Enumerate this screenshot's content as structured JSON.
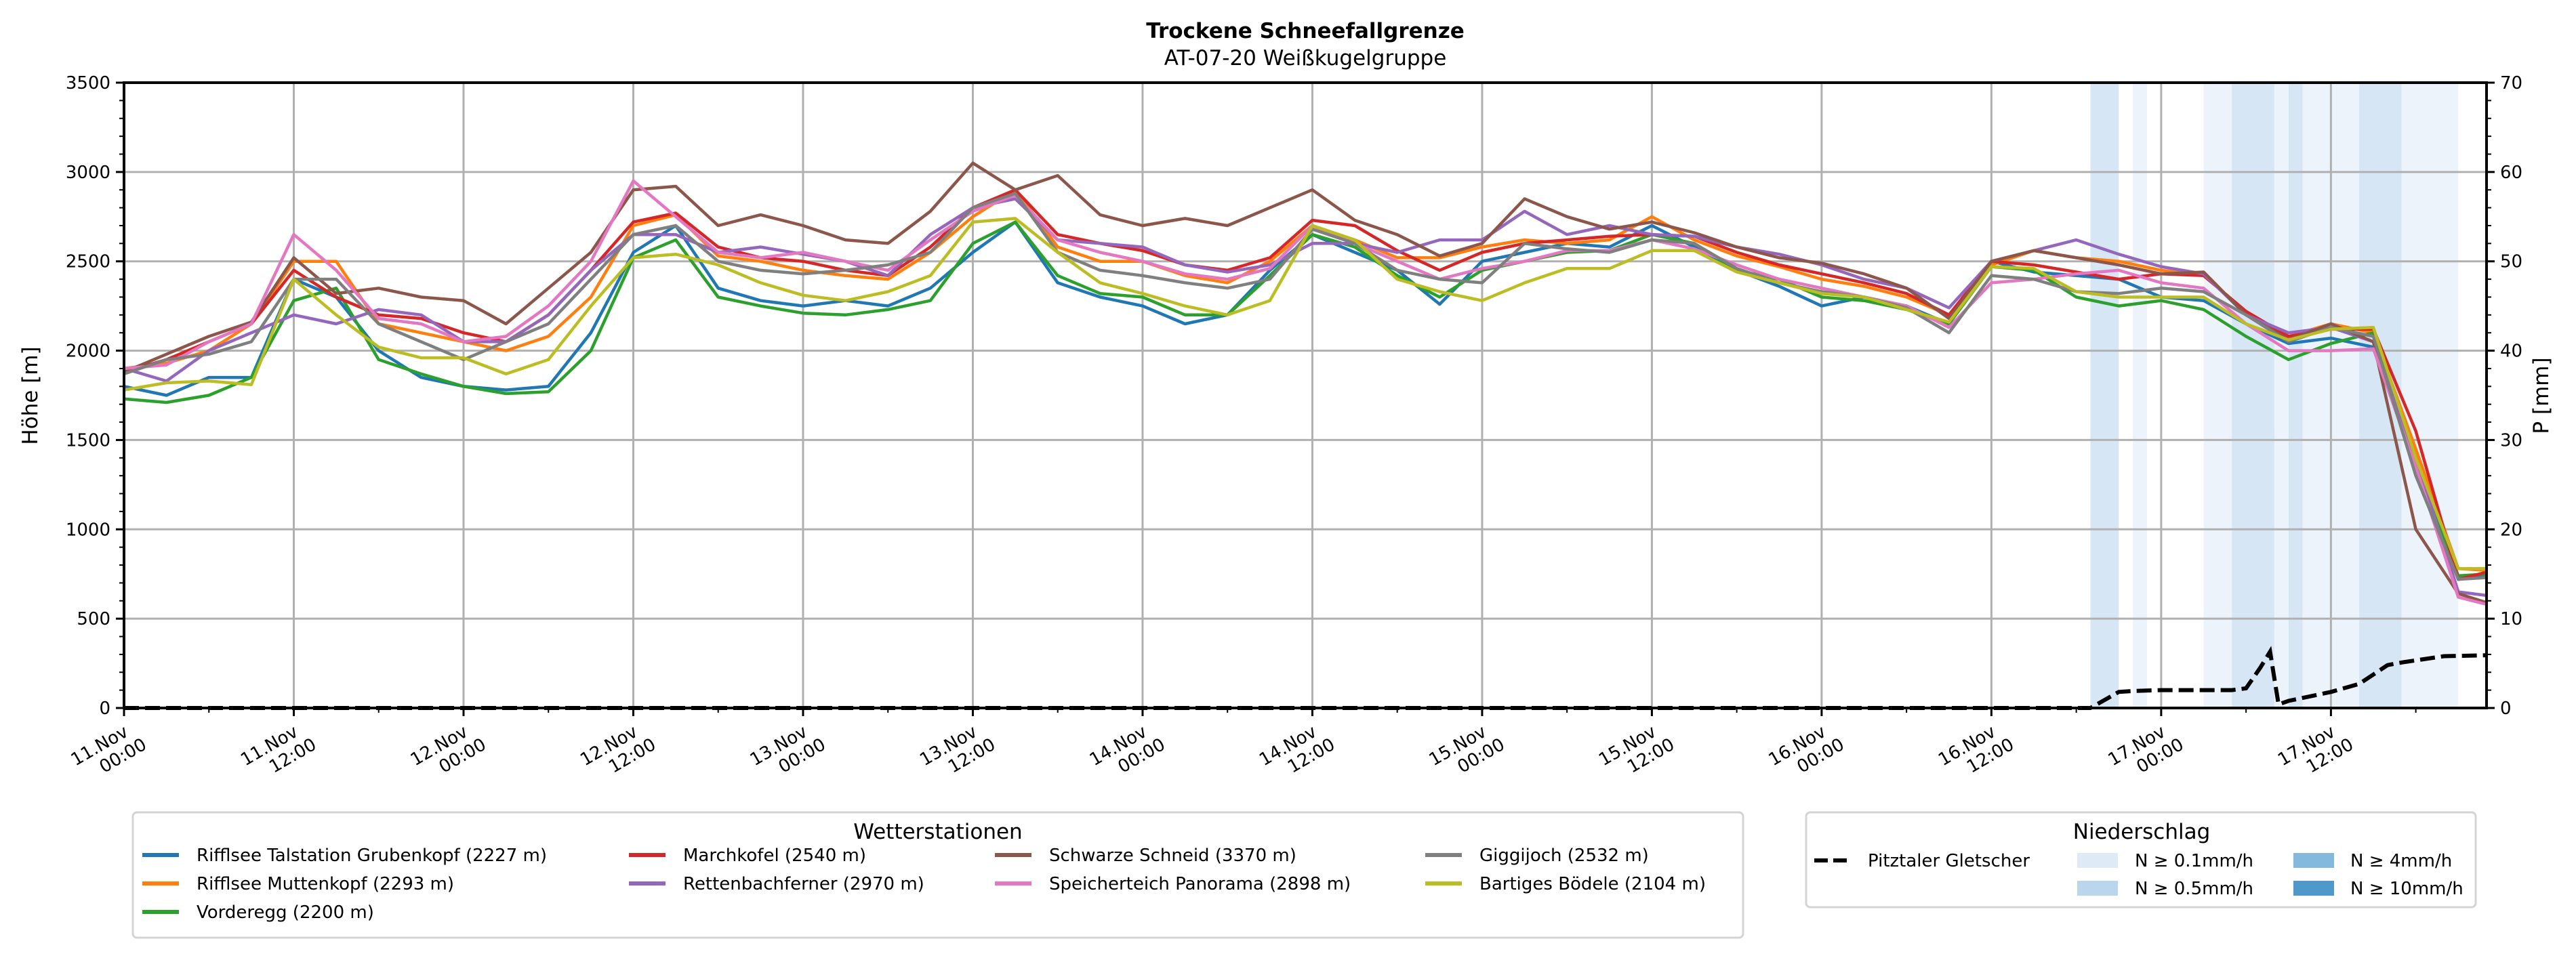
{
  "chart_data": {
    "type": "line",
    "title": "Trockene Schneefallgrenze",
    "subtitle": "AT-07-20 Weißkugelgruppe",
    "ylabel": "Höhe [m]",
    "y2label": "P [mm]",
    "ylim": [
      0,
      3500
    ],
    "y2lim": [
      0,
      70
    ],
    "yticks": [
      "0",
      "500",
      "1000",
      "1500",
      "2000",
      "2500",
      "3000",
      "3500"
    ],
    "y2ticks": [
      "0",
      "10",
      "20",
      "30",
      "40",
      "50",
      "60",
      "70"
    ],
    "x_unit": "hours since 11.Nov 00:00",
    "xlim": [
      0,
      167
    ],
    "xticks": [
      {
        "hour": 0,
        "line1": "11.Nov",
        "line2": "00:00"
      },
      {
        "hour": 12,
        "line1": "11.Nov",
        "line2": "12:00"
      },
      {
        "hour": 24,
        "line1": "12.Nov",
        "line2": "00:00"
      },
      {
        "hour": 36,
        "line1": "12.Nov",
        "line2": "12:00"
      },
      {
        "hour": 48,
        "line1": "13.Nov",
        "line2": "00:00"
      },
      {
        "hour": 60,
        "line1": "13.Nov",
        "line2": "12:00"
      },
      {
        "hour": 72,
        "line1": "14.Nov",
        "line2": "00:00"
      },
      {
        "hour": 84,
        "line1": "14.Nov",
        "line2": "12:00"
      },
      {
        "hour": 96,
        "line1": "15.Nov",
        "line2": "00:00"
      },
      {
        "hour": 108,
        "line1": "15.Nov",
        "line2": "12:00"
      },
      {
        "hour": 120,
        "line1": "16.Nov",
        "line2": "00:00"
      },
      {
        "hour": 132,
        "line1": "16.Nov",
        "line2": "12:00"
      },
      {
        "hour": 144,
        "line1": "17.Nov",
        "line2": "00:00"
      },
      {
        "hour": 156,
        "line1": "17.Nov",
        "line2": "12:00"
      }
    ],
    "x": [
      0,
      3,
      6,
      9,
      12,
      15,
      18,
      21,
      24,
      27,
      30,
      33,
      36,
      39,
      42,
      45,
      48,
      51,
      54,
      57,
      60,
      63,
      66,
      69,
      72,
      75,
      78,
      81,
      84,
      87,
      90,
      93,
      96,
      99,
      102,
      105,
      108,
      111,
      114,
      117,
      120,
      123,
      126,
      129,
      132,
      135,
      138,
      141,
      144,
      147,
      150,
      153,
      156,
      159,
      162,
      165,
      167
    ],
    "series": [
      {
        "name": "Rifflsee Talstation Grubenkopf (2227 m)",
        "color": "#1f77b4",
        "values": [
          1800,
          1750,
          1850,
          1850,
          2400,
          2300,
          2000,
          1850,
          1800,
          1780,
          1800,
          2100,
          2550,
          2700,
          2350,
          2280,
          2250,
          2280,
          2250,
          2350,
          2550,
          2720,
          2380,
          2300,
          2250,
          2150,
          2200,
          2450,
          2650,
          2550,
          2450,
          2260,
          2500,
          2550,
          2600,
          2580,
          2700,
          2580,
          2450,
          2360,
          2250,
          2300,
          2250,
          2150,
          2500,
          2440,
          2420,
          2400,
          2300,
          2280,
          2150,
          2040,
          2070,
          2020,
          1400,
          720,
          740
        ]
      },
      {
        "name": "Rifflsee Muttenkopf (2293 m)",
        "color": "#ff7f0e",
        "values": [
          1900,
          1930,
          2000,
          2150,
          2500,
          2500,
          2150,
          2100,
          2050,
          2000,
          2080,
          2300,
          2700,
          2760,
          2530,
          2500,
          2450,
          2420,
          2400,
          2550,
          2750,
          2900,
          2580,
          2500,
          2500,
          2420,
          2380,
          2500,
          2700,
          2620,
          2520,
          2520,
          2580,
          2620,
          2600,
          2620,
          2750,
          2620,
          2530,
          2470,
          2400,
          2360,
          2300,
          2200,
          2480,
          2560,
          2520,
          2500,
          2450,
          2420,
          2220,
          2080,
          2150,
          2100,
          1450,
          780,
          770
        ]
      },
      {
        "name": "Vorderegg (2200 m)",
        "color": "#2ca02c",
        "values": [
          1730,
          1710,
          1750,
          1850,
          2280,
          2350,
          1950,
          1870,
          1800,
          1760,
          1770,
          2000,
          2520,
          2620,
          2300,
          2250,
          2210,
          2200,
          2230,
          2280,
          2600,
          2720,
          2420,
          2320,
          2300,
          2200,
          2200,
          2420,
          2650,
          2580,
          2420,
          2300,
          2450,
          2500,
          2550,
          2560,
          2650,
          2600,
          2450,
          2400,
          2300,
          2280,
          2230,
          2150,
          2470,
          2450,
          2300,
          2250,
          2280,
          2230,
          2080,
          1950,
          2040,
          2100,
          1400,
          740,
          750
        ]
      },
      {
        "name": "Marchkofel (2540 m)",
        "color": "#d62728",
        "values": [
          1880,
          1950,
          2050,
          2150,
          2450,
          2300,
          2200,
          2180,
          2100,
          2050,
          2200,
          2450,
          2720,
          2770,
          2580,
          2520,
          2500,
          2450,
          2420,
          2580,
          2800,
          2900,
          2650,
          2600,
          2560,
          2480,
          2450,
          2520,
          2730,
          2700,
          2560,
          2450,
          2550,
          2600,
          2620,
          2640,
          2650,
          2640,
          2550,
          2480,
          2430,
          2380,
          2320,
          2200,
          2500,
          2480,
          2440,
          2400,
          2430,
          2420,
          2220,
          2080,
          2120,
          2120,
          1550,
          720,
          760
        ]
      },
      {
        "name": "Rettenbachferner (2970 m)",
        "color": "#9467bd",
        "values": [
          1900,
          1830,
          2000,
          2100,
          2200,
          2150,
          2230,
          2200,
          2050,
          2050,
          2200,
          2450,
          2650,
          2650,
          2550,
          2580,
          2540,
          2500,
          2420,
          2650,
          2800,
          2850,
          2620,
          2600,
          2580,
          2480,
          2440,
          2480,
          2600,
          2600,
          2550,
          2620,
          2620,
          2780,
          2650,
          2700,
          2650,
          2640,
          2580,
          2540,
          2480,
          2400,
          2350,
          2240,
          2500,
          2560,
          2620,
          2540,
          2470,
          2430,
          2200,
          2100,
          2130,
          2050,
          1400,
          650,
          630
        ]
      },
      {
        "name": "Schwarze Schneid (3370 m)",
        "color": "#8c564b",
        "values": [
          1880,
          1980,
          2080,
          2160,
          2520,
          2320,
          2350,
          2300,
          2280,
          2150,
          2350,
          2550,
          2900,
          2920,
          2700,
          2760,
          2700,
          2620,
          2600,
          2780,
          3050,
          2900,
          2980,
          2760,
          2700,
          2740,
          2700,
          2800,
          2900,
          2730,
          2650,
          2530,
          2600,
          2850,
          2750,
          2680,
          2720,
          2660,
          2580,
          2520,
          2490,
          2430,
          2350,
          2180,
          2500,
          2560,
          2520,
          2480,
          2430,
          2440,
          2200,
          2060,
          2150,
          2050,
          1000,
          640,
          590
        ]
      },
      {
        "name": "Speicherteich Panorama (2898 m)",
        "color": "#e377c2",
        "values": [
          1900,
          1920,
          2050,
          2150,
          2650,
          2450,
          2180,
          2150,
          2050,
          2080,
          2250,
          2500,
          2950,
          2750,
          2550,
          2520,
          2550,
          2500,
          2450,
          2620,
          2780,
          2870,
          2620,
          2550,
          2500,
          2430,
          2400,
          2460,
          2700,
          2600,
          2500,
          2400,
          2460,
          2500,
          2560,
          2560,
          2620,
          2570,
          2480,
          2400,
          2350,
          2300,
          2250,
          2130,
          2380,
          2400,
          2430,
          2450,
          2380,
          2350,
          2150,
          2000,
          2000,
          2010,
          1350,
          620,
          580
        ]
      },
      {
        "name": "Giggijoch (2532 m)",
        "color": "#7f7f7f",
        "values": [
          1870,
          1950,
          1980,
          2050,
          2400,
          2400,
          2150,
          2050,
          1950,
          2050,
          2150,
          2400,
          2650,
          2700,
          2500,
          2450,
          2430,
          2450,
          2480,
          2550,
          2800,
          2880,
          2550,
          2450,
          2420,
          2380,
          2350,
          2400,
          2680,
          2600,
          2450,
          2400,
          2380,
          2600,
          2570,
          2550,
          2620,
          2600,
          2460,
          2380,
          2330,
          2300,
          2240,
          2100,
          2420,
          2400,
          2330,
          2320,
          2350,
          2330,
          2200,
          2050,
          2130,
          2080,
          1300,
          720,
          730
        ]
      },
      {
        "name": "Bartiges Bödele (2104 m)",
        "color": "#bcbd22",
        "values": [
          1780,
          1820,
          1830,
          1810,
          2400,
          2200,
          2020,
          1960,
          1960,
          1870,
          1950,
          2250,
          2520,
          2540,
          2480,
          2380,
          2310,
          2280,
          2330,
          2420,
          2720,
          2740,
          2550,
          2380,
          2320,
          2250,
          2200,
          2280,
          2700,
          2620,
          2400,
          2330,
          2280,
          2380,
          2460,
          2460,
          2560,
          2560,
          2440,
          2380,
          2320,
          2300,
          2230,
          2160,
          2470,
          2460,
          2330,
          2300,
          2300,
          2300,
          2150,
          2060,
          2120,
          2130,
          1400,
          780,
          780
        ]
      }
    ],
    "precipitation": {
      "name": "Pitztaler Gletscher",
      "color": "#000000",
      "axis": "P [mm]",
      "points": [
        {
          "hour": 0,
          "mm": 0
        },
        {
          "hour": 139,
          "mm": 0
        },
        {
          "hour": 141,
          "mm": 1.8
        },
        {
          "hour": 142,
          "mm": 1.9
        },
        {
          "hour": 144,
          "mm": 2.0
        },
        {
          "hour": 149,
          "mm": 2.0
        },
        {
          "hour": 150,
          "mm": 2.2
        },
        {
          "hour": 151,
          "mm": 4.5
        },
        {
          "hour": 151.7,
          "mm": 6.3
        },
        {
          "hour": 152.3,
          "mm": 0.4
        },
        {
          "hour": 153,
          "mm": 0.8
        },
        {
          "hour": 156,
          "mm": 1.8
        },
        {
          "hour": 158,
          "mm": 2.7
        },
        {
          "hour": 160,
          "mm": 4.8
        },
        {
          "hour": 161,
          "mm": 5.1
        },
        {
          "hour": 164,
          "mm": 5.8
        },
        {
          "hour": 167,
          "mm": 5.9
        }
      ]
    },
    "precip_bands": [
      {
        "start": 139,
        "end": 141,
        "level": "N ≥ 0.5mm/h"
      },
      {
        "start": 142,
        "end": 143,
        "level": "N ≥ 0.1mm/h"
      },
      {
        "start": 147,
        "end": 149,
        "level": "N ≥ 0.1mm/h"
      },
      {
        "start": 149,
        "end": 152,
        "level": "N ≥ 0.5mm/h"
      },
      {
        "start": 152,
        "end": 153,
        "level": "N ≥ 0.1mm/h"
      },
      {
        "start": 153,
        "end": 154,
        "level": "N ≥ 0.5mm/h"
      },
      {
        "start": 154,
        "end": 158,
        "level": "N ≥ 0.1mm/h"
      },
      {
        "start": 158,
        "end": 161,
        "level": "N ≥ 0.5mm/h"
      },
      {
        "start": 161,
        "end": 165,
        "level": "N ≥ 0.1mm/h"
      }
    ],
    "legend_stations": {
      "title": "Wetterstationen",
      "placement": "bottom-left"
    },
    "legend_precip": {
      "title": "Niederschlag",
      "placement": "bottom-right",
      "line_label": "Pitztaler Gletscher",
      "levels": [
        {
          "label": "N ≥ 0.1mm/h",
          "color": "#deebf7"
        },
        {
          "label": "N ≥ 0.5mm/h",
          "color": "#b9d6ec"
        },
        {
          "label": "N ≥ 4mm/h",
          "color": "#82b9dc"
        },
        {
          "label": "N ≥ 10mm/h",
          "color": "#4e98ca"
        }
      ]
    },
    "grid": true
  }
}
